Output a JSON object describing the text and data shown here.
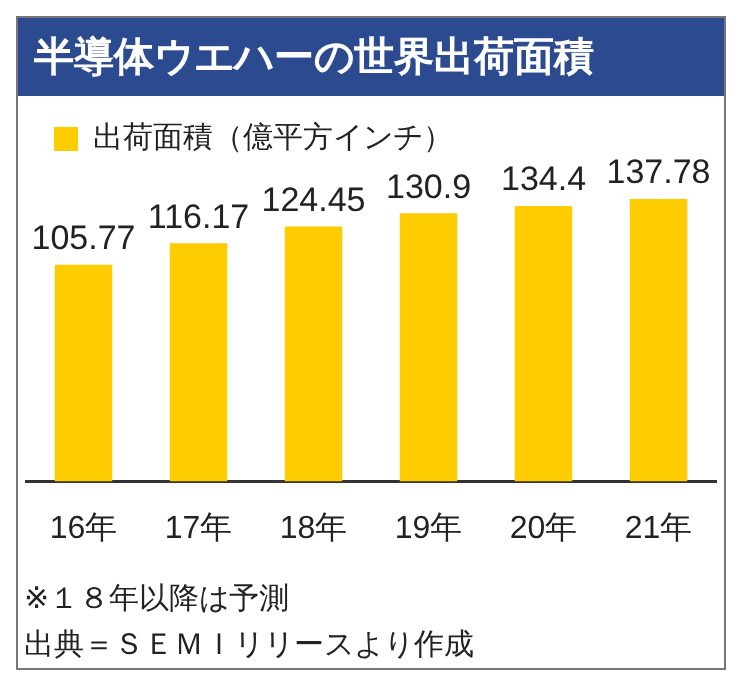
{
  "chart_data": {
    "type": "bar",
    "title": "半導体ウエハーの世界出荷面積",
    "categories": [
      "16年",
      "17年",
      "18年",
      "19年",
      "20年",
      "21年"
    ],
    "series": [
      {
        "name": "出荷面積（億平方インチ）",
        "color": "#ffcc00",
        "values": [
          105.77,
          116.17,
          124.45,
          130.9,
          134.4,
          137.78
        ]
      }
    ],
    "data_labels": true,
    "legend": "top left",
    "tick_labels": "x",
    "annotations": [
      "※１８年以降は予測",
      "出典＝ＳＥＭＩリリースより作成"
    ]
  }
}
